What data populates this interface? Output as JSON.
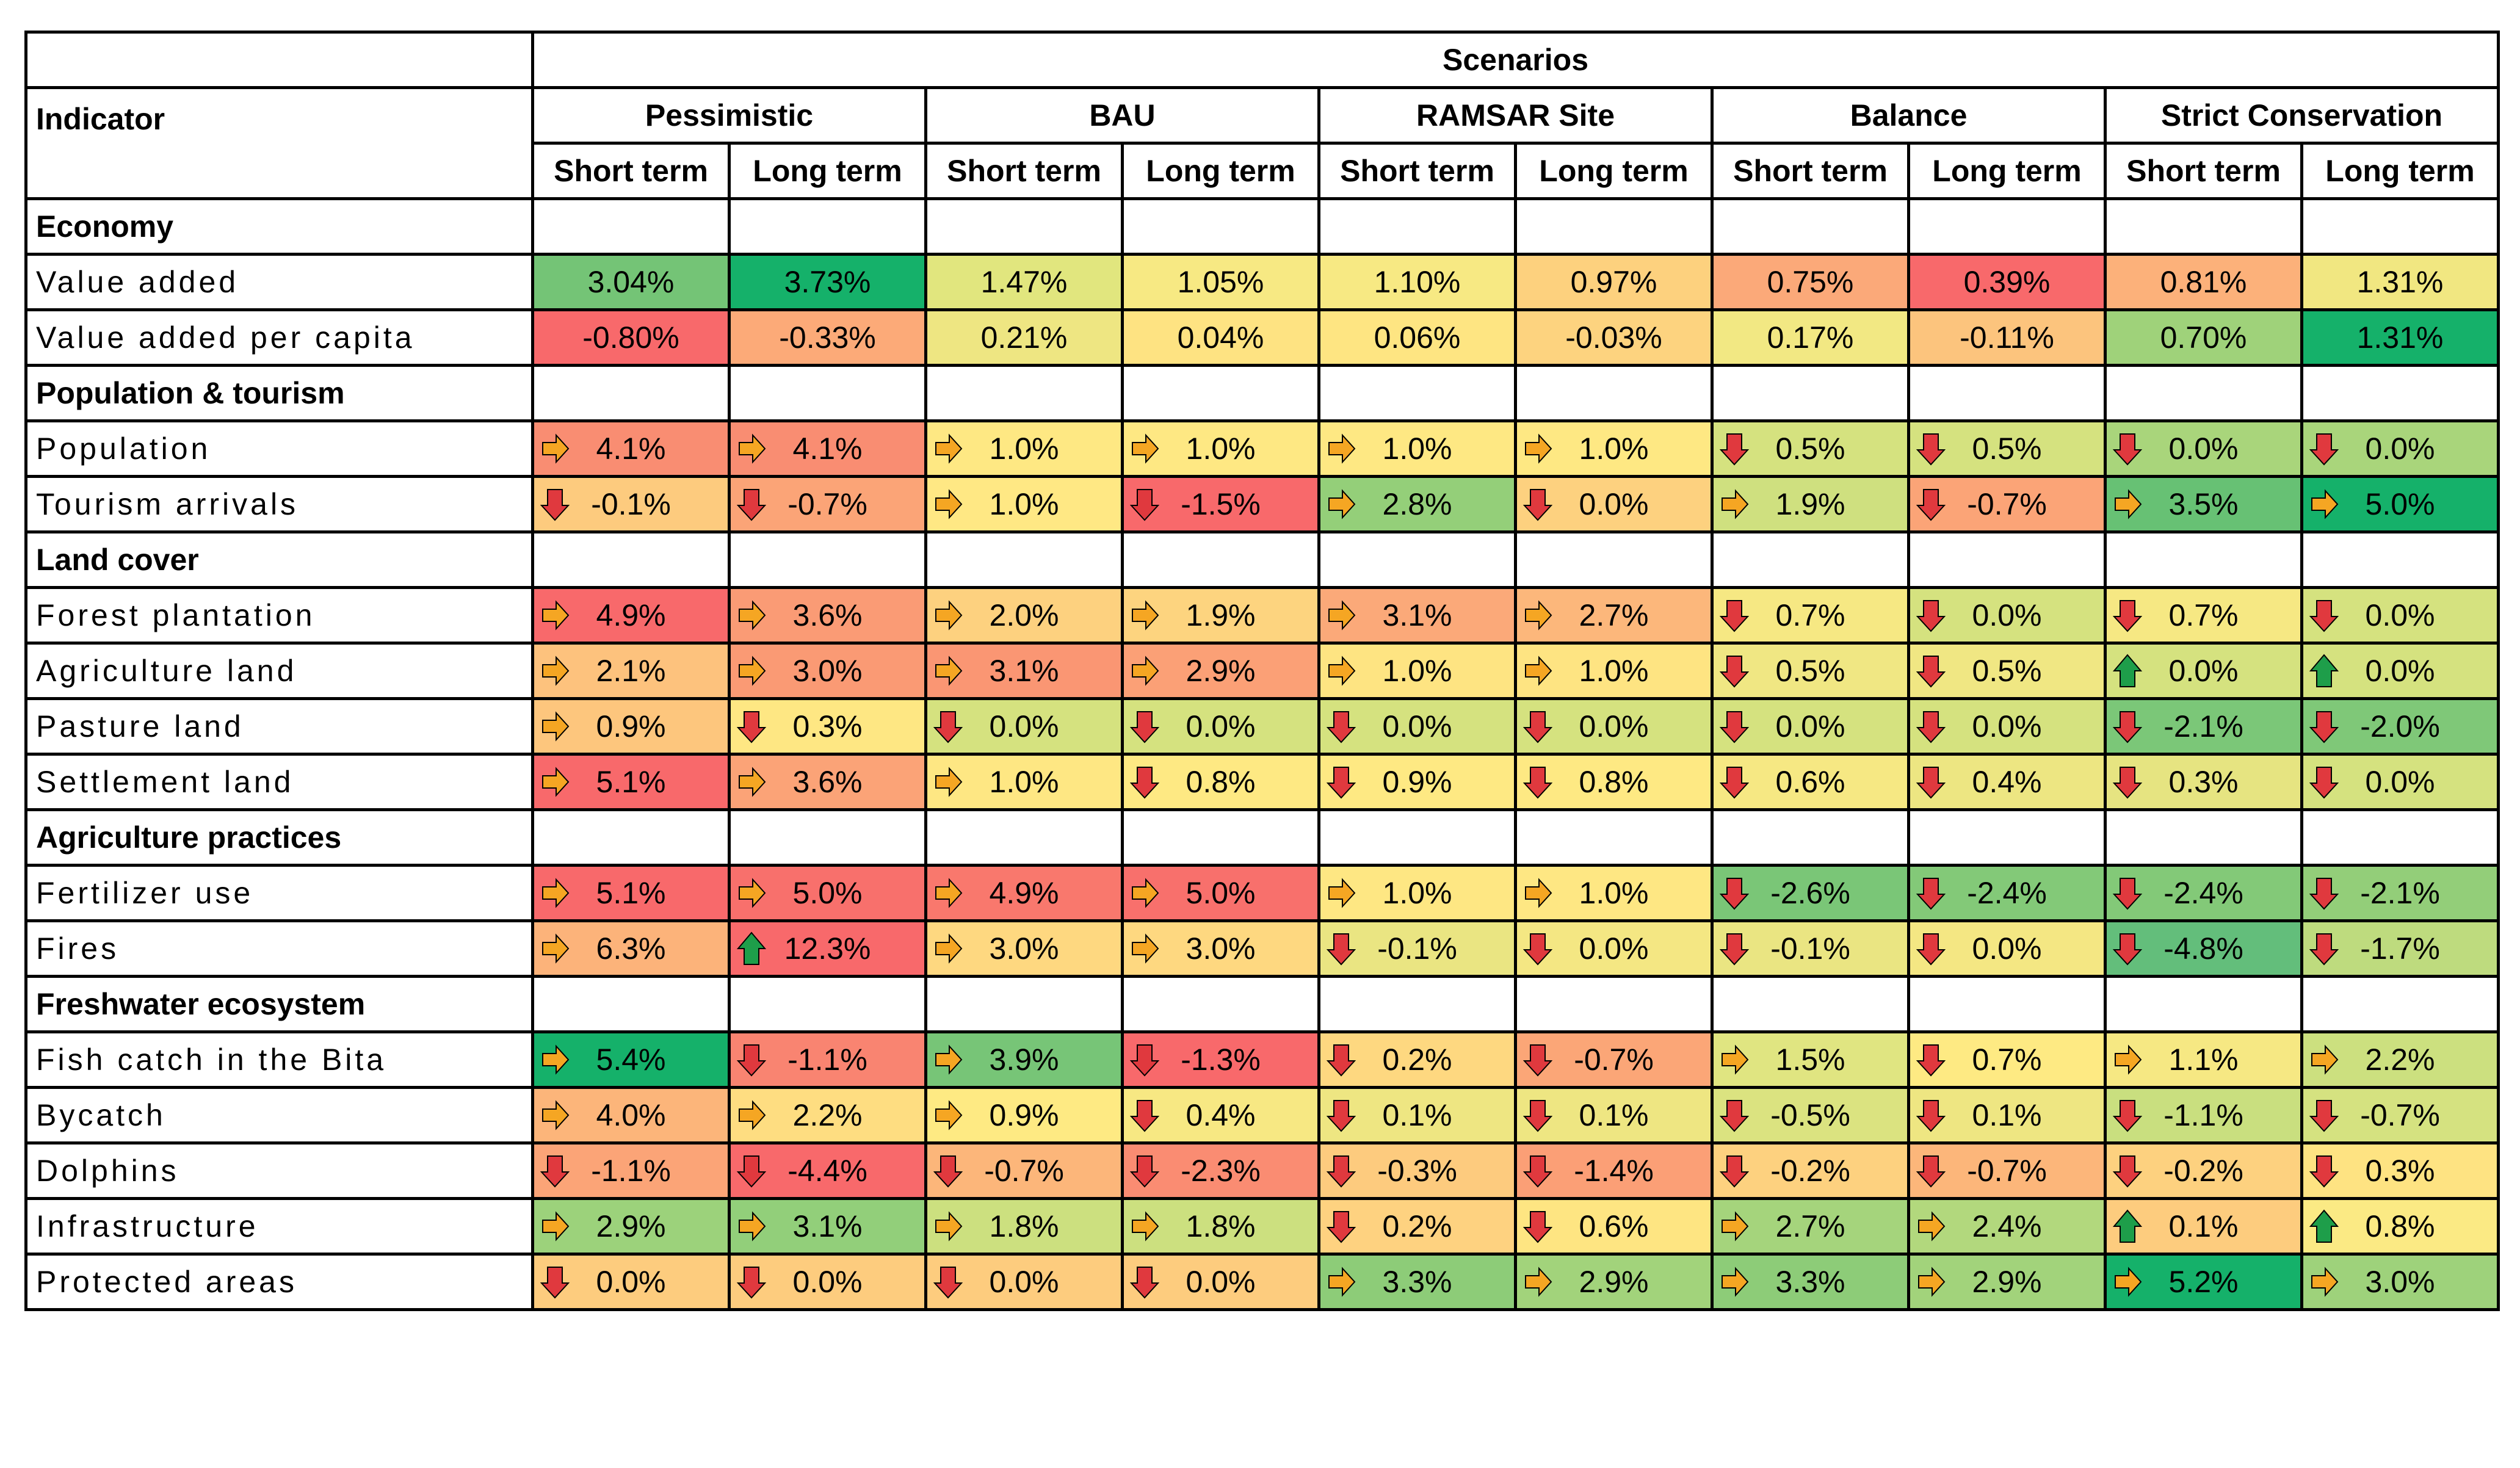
{
  "header": {
    "scenarios_label": "Scenarios",
    "indicator_label": "Indicator",
    "scenarios": [
      "Pessimistic",
      "BAU",
      "RAMSAR Site",
      "Balance",
      "Strict Conservation"
    ],
    "term_labels": [
      "Short term",
      "Long term"
    ]
  },
  "arrow_colors": {
    "right": "#F5A623",
    "down": "#E0393E",
    "up": "#1E9E4A"
  },
  "sections": [
    {
      "category": "Economy",
      "rows": [
        {
          "name": "Value added",
          "cells": [
            {
              "v": "3.04%",
              "a": "",
              "bg": "#74C476"
            },
            {
              "v": "3.73%",
              "a": "",
              "bg": "#15B16A"
            },
            {
              "v": "1.47%",
              "a": "",
              "bg": "#E1E67E"
            },
            {
              "v": "1.05%",
              "a": "",
              "bg": "#F7E983"
            },
            {
              "v": "1.10%",
              "a": "",
              "bg": "#F7E983"
            },
            {
              "v": "0.97%",
              "a": "",
              "bg": "#FDD17E"
            },
            {
              "v": "0.75%",
              "a": "",
              "bg": "#FBA979"
            },
            {
              "v": "0.39%",
              "a": "",
              "bg": "#F8696B"
            },
            {
              "v": "0.81%",
              "a": "",
              "bg": "#FCB17A"
            },
            {
              "v": "1.31%",
              "a": "",
              "bg": "#F1E781"
            }
          ]
        },
        {
          "name": "Value added per capita",
          "cells": [
            {
              "v": "-0.80%",
              "a": "",
              "bg": "#F8696B"
            },
            {
              "v": "-0.33%",
              "a": "",
              "bg": "#FCAA78"
            },
            {
              "v": "0.21%",
              "a": "",
              "bg": "#EEE682"
            },
            {
              "v": "0.04%",
              "a": "",
              "bg": "#FEE382"
            },
            {
              "v": "0.06%",
              "a": "",
              "bg": "#FEE582"
            },
            {
              "v": "-0.03%",
              "a": "",
              "bg": "#FDD37F"
            },
            {
              "v": "0.17%",
              "a": "",
              "bg": "#F2E883"
            },
            {
              "v": "-0.11%",
              "a": "",
              "bg": "#FCC47D"
            },
            {
              "v": "0.70%",
              "a": "",
              "bg": "#9FD27A"
            },
            {
              "v": "1.31%",
              "a": "",
              "bg": "#15B16A"
            }
          ]
        }
      ]
    },
    {
      "category": "Population & tourism",
      "rows": [
        {
          "name": "Population",
          "cells": [
            {
              "v": "4.1%",
              "a": "right",
              "bg": "#F98D72"
            },
            {
              "v": "4.1%",
              "a": "right",
              "bg": "#F98D72"
            },
            {
              "v": "1.0%",
              "a": "right",
              "bg": "#FEE883"
            },
            {
              "v": "1.0%",
              "a": "right",
              "bg": "#FEE883"
            },
            {
              "v": "1.0%",
              "a": "right",
              "bg": "#FEE883"
            },
            {
              "v": "1.0%",
              "a": "right",
              "bg": "#FEE883"
            },
            {
              "v": "0.5%",
              "a": "down",
              "bg": "#D5E27F"
            },
            {
              "v": "0.5%",
              "a": "down",
              "bg": "#D5E27F"
            },
            {
              "v": "0.0%",
              "a": "down",
              "bg": "#A9D57B"
            },
            {
              "v": "0.0%",
              "a": "down",
              "bg": "#A9D57B"
            }
          ]
        },
        {
          "name": "Tourism arrivals",
          "cells": [
            {
              "v": "-0.1%",
              "a": "down",
              "bg": "#FDCB7E"
            },
            {
              "v": "-0.7%",
              "a": "down",
              "bg": "#FBA477"
            },
            {
              "v": "1.0%",
              "a": "right",
              "bg": "#FFE884"
            },
            {
              "v": "-1.5%",
              "a": "down",
              "bg": "#F8696B"
            },
            {
              "v": "2.8%",
              "a": "right",
              "bg": "#94CF79"
            },
            {
              "v": "0.0%",
              "a": "down",
              "bg": "#FDD17F"
            },
            {
              "v": "1.9%",
              "a": "right",
              "bg": "#CFE07F"
            },
            {
              "v": "-0.7%",
              "a": "down",
              "bg": "#FBA477"
            },
            {
              "v": "3.5%",
              "a": "right",
              "bg": "#67C174"
            },
            {
              "v": "5.0%",
              "a": "right",
              "bg": "#15B16A"
            }
          ]
        }
      ]
    },
    {
      "category": "Land cover",
      "rows": [
        {
          "name": "Forest plantation",
          "cells": [
            {
              "v": "4.9%",
              "a": "right",
              "bg": "#F8696B"
            },
            {
              "v": "3.6%",
              "a": "right",
              "bg": "#FA9B75"
            },
            {
              "v": "2.0%",
              "a": "right",
              "bg": "#FDD17F"
            },
            {
              "v": "1.9%",
              "a": "right",
              "bg": "#FDD47F"
            },
            {
              "v": "3.1%",
              "a": "right",
              "bg": "#FBA979"
            },
            {
              "v": "2.7%",
              "a": "right",
              "bg": "#FCB77B"
            },
            {
              "v": "0.7%",
              "a": "down",
              "bg": "#F6E883"
            },
            {
              "v": "0.0%",
              "a": "down",
              "bg": "#D5E27F"
            },
            {
              "v": "0.7%",
              "a": "down",
              "bg": "#F6E883"
            },
            {
              "v": "0.0%",
              "a": "down",
              "bg": "#D5E27F"
            }
          ]
        },
        {
          "name": "Agriculture land",
          "cells": [
            {
              "v": "2.1%",
              "a": "right",
              "bg": "#FDC27D"
            },
            {
              "v": "3.0%",
              "a": "right",
              "bg": "#FA9A74"
            },
            {
              "v": "3.1%",
              "a": "right",
              "bg": "#FA9673"
            },
            {
              "v": "2.9%",
              "a": "right",
              "bg": "#FBA076"
            },
            {
              "v": "1.0%",
              "a": "right",
              "bg": "#FEE482"
            },
            {
              "v": "1.0%",
              "a": "right",
              "bg": "#FEE482"
            },
            {
              "v": "0.5%",
              "a": "down",
              "bg": "#F0E783"
            },
            {
              "v": "0.5%",
              "a": "down",
              "bg": "#F0E783"
            },
            {
              "v": "0.0%",
              "a": "up",
              "bg": "#D5E27F"
            },
            {
              "v": "0.0%",
              "a": "up",
              "bg": "#D5E27F"
            }
          ]
        },
        {
          "name": "Pasture land",
          "cells": [
            {
              "v": "0.9%",
              "a": "right",
              "bg": "#FDC67D"
            },
            {
              "v": "0.3%",
              "a": "down",
              "bg": "#FEE783"
            },
            {
              "v": "0.0%",
              "a": "down",
              "bg": "#D5E27F"
            },
            {
              "v": "0.0%",
              "a": "down",
              "bg": "#D5E27F"
            },
            {
              "v": "0.0%",
              "a": "down",
              "bg": "#D5E27F"
            },
            {
              "v": "0.0%",
              "a": "down",
              "bg": "#D5E27F"
            },
            {
              "v": "0.0%",
              "a": "down",
              "bg": "#D5E27F"
            },
            {
              "v": "0.0%",
              "a": "down",
              "bg": "#D5E27F"
            },
            {
              "v": "-2.1%",
              "a": "down",
              "bg": "#7BC778"
            },
            {
              "v": "-2.0%",
              "a": "down",
              "bg": "#7FC878"
            }
          ]
        },
        {
          "name": "Settlement land",
          "cells": [
            {
              "v": "5.1%",
              "a": "right",
              "bg": "#F8696B"
            },
            {
              "v": "3.6%",
              "a": "right",
              "bg": "#FBA377"
            },
            {
              "v": "1.0%",
              "a": "right",
              "bg": "#FEE783"
            },
            {
              "v": "0.8%",
              "a": "down",
              "bg": "#FEE983"
            },
            {
              "v": "0.9%",
              "a": "down",
              "bg": "#FEE983"
            },
            {
              "v": "0.8%",
              "a": "down",
              "bg": "#FEE983"
            },
            {
              "v": "0.6%",
              "a": "down",
              "bg": "#F6E883"
            },
            {
              "v": "0.4%",
              "a": "down",
              "bg": "#EDE682"
            },
            {
              "v": "0.3%",
              "a": "down",
              "bg": "#E6E481"
            },
            {
              "v": "0.0%",
              "a": "down",
              "bg": "#D5E27F"
            }
          ]
        }
      ]
    },
    {
      "category": "Agriculture practices",
      "rows": [
        {
          "name": "Fertilizer use",
          "cells": [
            {
              "v": "5.1%",
              "a": "right",
              "bg": "#F8696B"
            },
            {
              "v": "5.0%",
              "a": "right",
              "bg": "#F8706C"
            },
            {
              "v": "4.9%",
              "a": "right",
              "bg": "#F9786D"
            },
            {
              "v": "5.0%",
              "a": "right",
              "bg": "#F8706C"
            },
            {
              "v": "1.0%",
              "a": "right",
              "bg": "#FEE783"
            },
            {
              "v": "1.0%",
              "a": "right",
              "bg": "#FEE783"
            },
            {
              "v": "-2.6%",
              "a": "down",
              "bg": "#7AC677"
            },
            {
              "v": "-2.4%",
              "a": "down",
              "bg": "#83C978"
            },
            {
              "v": "-2.4%",
              "a": "down",
              "bg": "#83C978"
            },
            {
              "v": "-2.1%",
              "a": "down",
              "bg": "#93CE79"
            }
          ]
        },
        {
          "name": "Fires",
          "cells": [
            {
              "v": "6.3%",
              "a": "right",
              "bg": "#FCB37A"
            },
            {
              "v": "12.3%",
              "a": "up",
              "bg": "#F8696B"
            },
            {
              "v": "3.0%",
              "a": "right",
              "bg": "#FED880"
            },
            {
              "v": "3.0%",
              "a": "right",
              "bg": "#FED880"
            },
            {
              "v": "-0.1%",
              "a": "down",
              "bg": "#EAE582"
            },
            {
              "v": "0.0%",
              "a": "down",
              "bg": "#F4E783"
            },
            {
              "v": "-0.1%",
              "a": "down",
              "bg": "#EAE582"
            },
            {
              "v": "0.0%",
              "a": "down",
              "bg": "#F4E783"
            },
            {
              "v": "-4.8%",
              "a": "down",
              "bg": "#63BE7B"
            },
            {
              "v": "-1.7%",
              "a": "down",
              "bg": "#BEDB7E"
            }
          ]
        }
      ]
    },
    {
      "category": "Freshwater ecosystem",
      "rows": [
        {
          "name": "Fish catch in the Bita",
          "cells": [
            {
              "v": "5.4%",
              "a": "right",
              "bg": "#15B16A"
            },
            {
              "v": "-1.1%",
              "a": "down",
              "bg": "#F98471"
            },
            {
              "v": "3.9%",
              "a": "right",
              "bg": "#77C577"
            },
            {
              "v": "-1.3%",
              "a": "down",
              "bg": "#F8696B"
            },
            {
              "v": "0.2%",
              "a": "down",
              "bg": "#FED880"
            },
            {
              "v": "-0.7%",
              "a": "down",
              "bg": "#FBA677"
            },
            {
              "v": "1.5%",
              "a": "right",
              "bg": "#E0E581"
            },
            {
              "v": "0.7%",
              "a": "down",
              "bg": "#FEEA83"
            },
            {
              "v": "1.1%",
              "a": "right",
              "bg": "#F6E883"
            },
            {
              "v": "2.2%",
              "a": "right",
              "bg": "#CCE07F"
            }
          ]
        },
        {
          "name": "Bycatch",
          "cells": [
            {
              "v": "4.0%",
              "a": "right",
              "bg": "#FCB57A"
            },
            {
              "v": "2.2%",
              "a": "right",
              "bg": "#FEDD81"
            },
            {
              "v": "0.9%",
              "a": "right",
              "bg": "#FEEA83"
            },
            {
              "v": "0.4%",
              "a": "down",
              "bg": "#F7E883"
            },
            {
              "v": "0.1%",
              "a": "down",
              "bg": "#EEE682"
            },
            {
              "v": "0.1%",
              "a": "down",
              "bg": "#EEE682"
            },
            {
              "v": "-0.5%",
              "a": "down",
              "bg": "#DBE380"
            },
            {
              "v": "0.1%",
              "a": "down",
              "bg": "#EEE682"
            },
            {
              "v": "-1.1%",
              "a": "down",
              "bg": "#C9DF7F"
            },
            {
              "v": "-0.7%",
              "a": "down",
              "bg": "#D5E280"
            }
          ]
        },
        {
          "name": "Dolphins",
          "cells": [
            {
              "v": "-1.1%",
              "a": "down",
              "bg": "#FBA477"
            },
            {
              "v": "-4.4%",
              "a": "down",
              "bg": "#F8696B"
            },
            {
              "v": "-0.7%",
              "a": "down",
              "bg": "#FCB67A"
            },
            {
              "v": "-2.3%",
              "a": "down",
              "bg": "#FA8C72"
            },
            {
              "v": "-0.3%",
              "a": "down",
              "bg": "#FDCB7E"
            },
            {
              "v": "-1.4%",
              "a": "down",
              "bg": "#FB9F76"
            },
            {
              "v": "-0.2%",
              "a": "down",
              "bg": "#FDD17F"
            },
            {
              "v": "-0.7%",
              "a": "down",
              "bg": "#FCB67A"
            },
            {
              "v": "-0.2%",
              "a": "down",
              "bg": "#FDD17F"
            },
            {
              "v": "0.3%",
              "a": "down",
              "bg": "#FEE382"
            }
          ]
        },
        {
          "name": "Infrastructure",
          "cells": [
            {
              "v": "2.9%",
              "a": "right",
              "bg": "#9CD27B"
            },
            {
              "v": "3.1%",
              "a": "right",
              "bg": "#92CF7A"
            },
            {
              "v": "1.8%",
              "a": "right",
              "bg": "#CCE07F"
            },
            {
              "v": "1.8%",
              "a": "right",
              "bg": "#CCE07F"
            },
            {
              "v": "0.2%",
              "a": "down",
              "bg": "#FED280"
            },
            {
              "v": "0.6%",
              "a": "down",
              "bg": "#FEE582"
            },
            {
              "v": "2.7%",
              "a": "right",
              "bg": "#A5D47C"
            },
            {
              "v": "2.4%",
              "a": "right",
              "bg": "#B2D87D"
            },
            {
              "v": "0.1%",
              "a": "up",
              "bg": "#FDCC7E"
            },
            {
              "v": "0.8%",
              "a": "up",
              "bg": "#FBEA84"
            }
          ]
        },
        {
          "name": "Protected areas",
          "cells": [
            {
              "v": "0.0%",
              "a": "down",
              "bg": "#FDCC7E"
            },
            {
              "v": "0.0%",
              "a": "down",
              "bg": "#FDCC7E"
            },
            {
              "v": "0.0%",
              "a": "down",
              "bg": "#FDCC7E"
            },
            {
              "v": "0.0%",
              "a": "down",
              "bg": "#FDCC7E"
            },
            {
              "v": "3.3%",
              "a": "right",
              "bg": "#8DCC78"
            },
            {
              "v": "2.9%",
              "a": "right",
              "bg": "#A2D37B"
            },
            {
              "v": "3.3%",
              "a": "right",
              "bg": "#8DCC78"
            },
            {
              "v": "2.9%",
              "a": "right",
              "bg": "#A2D37B"
            },
            {
              "v": "5.2%",
              "a": "right",
              "bg": "#15B16A"
            },
            {
              "v": "3.0%",
              "a": "right",
              "bg": "#9ED27B"
            }
          ]
        }
      ]
    }
  ]
}
